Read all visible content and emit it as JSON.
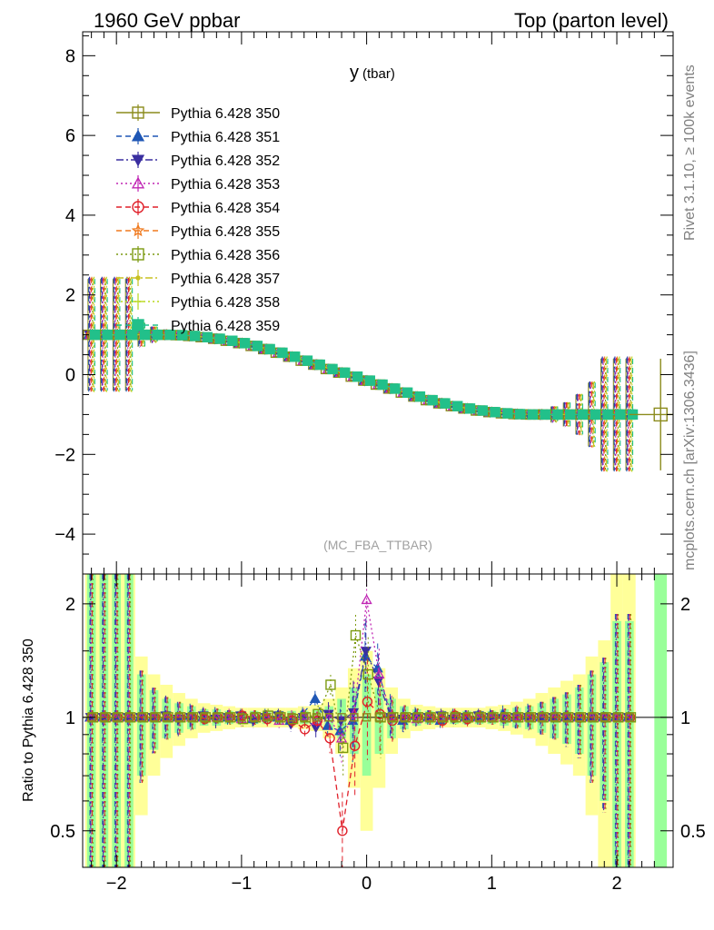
{
  "header": {
    "left": "1960 GeV ppbar",
    "right": "Top (parton level)"
  },
  "side_labels": {
    "rivet": "Rivet 3.1.10, ≥ 100k events",
    "mcplots": "mcplots.cern.ch [arXiv:1306.3436]"
  },
  "chart_data": [
    {
      "type": "line",
      "title_main": "y",
      "title_sub": "(tbar)",
      "analysis": "(MC_FBA_TTBAR)",
      "xlim": [
        -2.27,
        2.45
      ],
      "ylim": [
        -5.0,
        8.6
      ],
      "y_ticks": [
        8,
        6,
        4,
        2,
        0,
        -2,
        -4
      ],
      "y_tick_labels": [
        "8",
        "6",
        "4",
        "2",
        "0",
        "−2",
        "−4"
      ],
      "legend_position": "top-left",
      "series": [
        {
          "name": "Pythia 6.428 350",
          "color": "#8b8b1c",
          "marker": "open-square",
          "dash": "solid"
        },
        {
          "name": "Pythia 6.428 351",
          "color": "#1f57b5",
          "marker": "filled-triangle-up",
          "dash": "dashed"
        },
        {
          "name": "Pythia 6.428 352",
          "color": "#3a2fa0",
          "marker": "filled-triangle-down",
          "dash": "dashdot"
        },
        {
          "name": "Pythia 6.428 353",
          "color": "#c026b4",
          "marker": "open-triangle-up",
          "dash": "dotted"
        },
        {
          "name": "Pythia 6.428 354",
          "color": "#e0202a",
          "marker": "open-circle",
          "dash": "dashed"
        },
        {
          "name": "Pythia 6.428 355",
          "color": "#f07a1e",
          "marker": "open-star",
          "dash": "dashed"
        },
        {
          "name": "Pythia 6.428 356",
          "color": "#7c9a10",
          "marker": "open-square",
          "dash": "dotted"
        },
        {
          "name": "Pythia 6.428 357",
          "color": "#c8c020",
          "marker": "filled-small",
          "dash": "dashdot"
        },
        {
          "name": "Pythia 6.428 358",
          "color": "#b8d81c",
          "marker": "none",
          "dash": "dotted"
        },
        {
          "name": "Pythia 6.428 359",
          "color": "#22c08a",
          "marker": "filled-square",
          "dash": "dashed"
        }
      ],
      "x": [
        -2.2,
        -2.1,
        -2.0,
        -1.9,
        -1.8,
        -1.7,
        -1.6,
        -1.5,
        -1.4,
        -1.3,
        -1.2,
        -1.1,
        -1.0,
        -0.9,
        -0.8,
        -0.7,
        -0.6,
        -0.5,
        -0.4,
        -0.3,
        -0.2,
        -0.1,
        0.0,
        0.1,
        0.2,
        0.3,
        0.4,
        0.5,
        0.6,
        0.7,
        0.8,
        0.9,
        1.0,
        1.1,
        1.2,
        1.3,
        1.4,
        1.5,
        1.6,
        1.7,
        1.8,
        1.9,
        2.0,
        2.1
      ],
      "values": [
        1.0,
        1.0,
        1.0,
        1.0,
        1.0,
        1.0,
        1.0,
        0.99,
        0.97,
        0.94,
        0.9,
        0.85,
        0.79,
        0.72,
        0.64,
        0.55,
        0.45,
        0.35,
        0.25,
        0.14,
        0.05,
        -0.05,
        -0.15,
        -0.25,
        -0.35,
        -0.45,
        -0.55,
        -0.64,
        -0.72,
        -0.79,
        -0.85,
        -0.9,
        -0.94,
        -0.97,
        -0.99,
        -1.0,
        -1.0,
        -1.0,
        -1.0,
        -1.0,
        -1.0,
        -1.0,
        -1.0,
        -1.0
      ],
      "errors": [
        1.4,
        1.4,
        1.4,
        1.4,
        0.3,
        0.2,
        0.1,
        0.08,
        0.06,
        0.05,
        0.05,
        0.04,
        0.04,
        0.04,
        0.04,
        0.04,
        0.04,
        0.04,
        0.04,
        0.04,
        0.04,
        0.04,
        0.04,
        0.04,
        0.04,
        0.04,
        0.04,
        0.04,
        0.04,
        0.04,
        0.04,
        0.04,
        0.05,
        0.05,
        0.06,
        0.08,
        0.1,
        0.2,
        0.3,
        0.5,
        0.8,
        1.4,
        1.4,
        1.4
      ],
      "last_point": {
        "x": 2.35,
        "y": -1.0,
        "err": 1.4
      }
    },
    {
      "type": "line",
      "ylabel": "Ratio to Pythia 6.428 350",
      "xlim": [
        -2.27,
        2.45
      ],
      "ylim": [
        0.4,
        2.4
      ],
      "y_ticks": [
        0.5,
        1,
        2
      ],
      "y_tick_labels": [
        "0.5",
        "1",
        "2"
      ],
      "x_ticks": [
        -2,
        -1,
        0,
        1,
        2
      ],
      "x_tick_labels": [
        "−2",
        "−1",
        "0",
        "1",
        "2"
      ],
      "reference_line": 1,
      "band_yellow_halfwidth": [
        1.4,
        1.4,
        1.4,
        1.4,
        0.45,
        0.3,
        0.22,
        0.16,
        0.12,
        0.09,
        0.08,
        0.07,
        0.06,
        0.06,
        0.06,
        0.06,
        0.06,
        0.07,
        0.08,
        0.12,
        0.2,
        0.35,
        0.5,
        0.35,
        0.2,
        0.12,
        0.08,
        0.07,
        0.06,
        0.06,
        0.06,
        0.06,
        0.07,
        0.08,
        0.1,
        0.12,
        0.16,
        0.2,
        0.25,
        0.3,
        0.45,
        0.6,
        1.4,
        1.4
      ],
      "band_green_halfwidth": [
        1.4,
        1.4,
        1.4,
        1.4,
        0.3,
        0.18,
        0.12,
        0.09,
        0.07,
        0.05,
        0.05,
        0.04,
        0.04,
        0.04,
        0.04,
        0.04,
        0.04,
        0.04,
        0.05,
        0.07,
        0.12,
        0.2,
        0.3,
        0.2,
        0.12,
        0.07,
        0.05,
        0.04,
        0.04,
        0.04,
        0.04,
        0.04,
        0.04,
        0.05,
        0.06,
        0.07,
        0.09,
        0.12,
        0.15,
        0.2,
        0.3,
        0.4,
        0.8,
        0.8
      ],
      "ratio_series": {
        "Pythia 6.428 351": [
          1.0,
          1.0,
          1.0,
          1.0,
          1.0,
          1.0,
          1.0,
          1.0,
          1.01,
          1.0,
          1.01,
          1.0,
          1.0,
          0.99,
          1.01,
          1.0,
          0.98,
          1.02,
          1.12,
          0.95,
          0.92,
          0.98,
          1.45,
          1.35,
          1.02,
          0.98,
          1.01,
          1.0,
          0.98,
          1.01,
          1.0,
          1.0,
          1.01,
          1.02,
          1.0,
          1.01,
          1.0,
          1.0,
          1.0,
          1.0,
          1.0,
          1.0,
          1.0,
          1.0
        ],
        "Pythia 6.428 352": [
          1.0,
          1.0,
          1.0,
          1.0,
          1.0,
          1.0,
          1.01,
          0.99,
          1.0,
          1.01,
          0.99,
          1.0,
          1.01,
          0.98,
          1.0,
          1.01,
          0.96,
          1.0,
          0.94,
          1.02,
          0.98,
          1.03,
          1.5,
          1.25,
          1.0,
          0.99,
          1.0,
          1.0,
          1.01,
          0.99,
          1.0,
          1.01,
          1.0,
          0.99,
          1.0,
          1.0,
          1.0,
          1.0,
          1.0,
          1.0,
          1.0,
          1.0,
          1.0,
          1.0
        ],
        "Pythia 6.428 353": [
          1.0,
          1.0,
          1.0,
          1.0,
          1.0,
          1.0,
          1.0,
          1.0,
          1.0,
          1.0,
          1.0,
          1.01,
          0.99,
          1.0,
          1.0,
          0.98,
          1.0,
          1.01,
          0.98,
          1.0,
          0.88,
          1.02,
          2.05,
          1.3,
          1.01,
          1.0,
          0.99,
          1.0,
          1.0,
          1.01,
          1.0,
          1.0,
          1.0,
          1.0,
          1.01,
          1.0,
          1.0,
          1.0,
          1.0,
          1.0,
          1.0,
          1.0,
          1.0,
          1.0
        ],
        "Pythia 6.428 354": [
          1.0,
          1.0,
          1.0,
          1.0,
          1.0,
          1.0,
          1.0,
          1.0,
          1.0,
          0.99,
          1.0,
          1.0,
          1.01,
          1.0,
          0.99,
          1.0,
          0.98,
          0.93,
          0.98,
          0.88,
          0.5,
          0.84,
          1.1,
          1.02,
          0.98,
          1.0,
          1.0,
          1.0,
          0.98,
          1.01,
          0.99,
          1.0,
          1.0,
          1.0,
          1.0,
          1.0,
          1.0,
          1.0,
          1.0,
          1.0,
          1.0,
          1.0,
          1.0,
          1.0
        ],
        "Pythia 6.428 356": [
          1.0,
          1.0,
          1.0,
          1.0,
          1.0,
          1.0,
          1.0,
          1.0,
          1.0,
          1.0,
          1.0,
          1.0,
          0.99,
          1.0,
          1.01,
          1.0,
          0.99,
          1.0,
          1.02,
          1.22,
          0.83,
          1.65,
          1.3,
          1.0,
          1.0,
          1.0,
          1.0,
          1.0,
          1.0,
          1.0,
          1.0,
          1.0,
          1.0,
          1.0,
          1.0,
          1.0,
          1.0,
          1.0,
          1.0,
          1.0,
          1.0,
          1.0,
          1.0,
          1.0
        ]
      }
    }
  ]
}
